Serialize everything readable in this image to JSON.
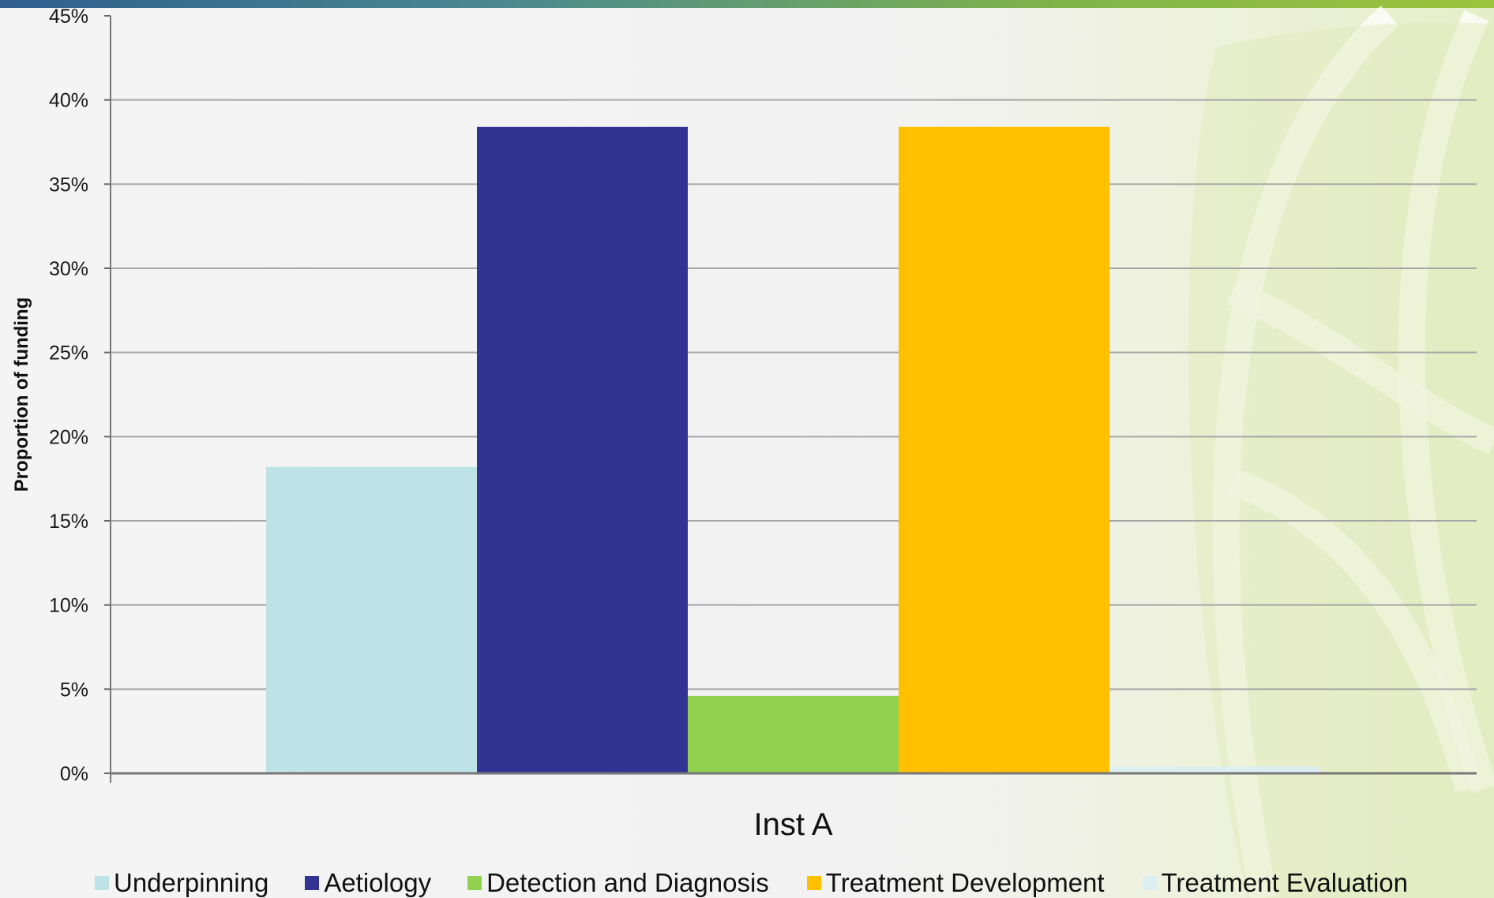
{
  "chart_data": {
    "type": "bar",
    "categories": [
      "Inst A"
    ],
    "series": [
      {
        "name": "Underpinning",
        "values": [
          18.2
        ],
        "color": "#bde3e6"
      },
      {
        "name": "Aetiology",
        "values": [
          38.4
        ],
        "color": "#333394"
      },
      {
        "name": "Detection and Diagnosis",
        "values": [
          4.6
        ],
        "color": "#92d050"
      },
      {
        "name": "Treatment Development",
        "values": [
          38.4
        ],
        "color": "#ffc000"
      },
      {
        "name": "Treatment Evaluation",
        "values": [
          0.4
        ],
        "color": "#dcf0f1"
      }
    ],
    "title": "",
    "xlabel": "",
    "ylabel": "Proportion of funding",
    "ylim": [
      0,
      45
    ],
    "yticks": [
      "0%",
      "5%",
      "10%",
      "15%",
      "20%",
      "25%",
      "30%",
      "35%",
      "40%",
      "45%"
    ],
    "grid": true,
    "legend_position": "bottom"
  }
}
